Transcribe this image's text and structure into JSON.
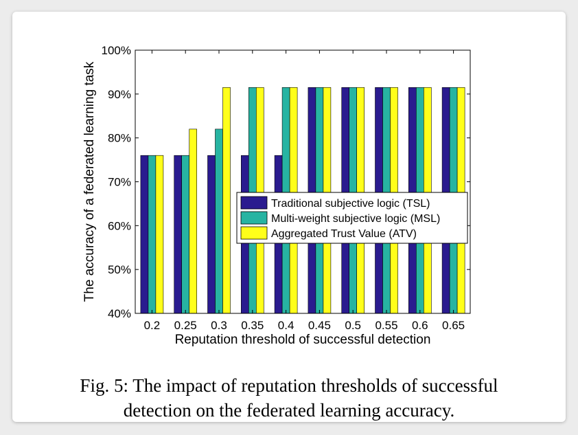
{
  "chart_data": {
    "type": "bar",
    "ylabel": "The accuracy of a federated learning task",
    "xlabel": "Reputation threshold of successful detection",
    "categories": [
      "0.2",
      "0.25",
      "0.3",
      "0.35",
      "0.4",
      "0.45",
      "0.5",
      "0.55",
      "0.6",
      "0.65"
    ],
    "ylim": [
      40,
      100
    ],
    "yticks": [
      "40%",
      "50%",
      "60%",
      "70%",
      "80%",
      "90%",
      "100%"
    ],
    "grid": false,
    "legend_position": "center-right",
    "series": [
      {
        "name": "Traditional subjective logic (TSL)",
        "color": "#2a1b8f",
        "values": [
          76,
          76,
          76,
          76,
          76,
          91.5,
          91.5,
          91.5,
          91.5,
          91.5
        ]
      },
      {
        "name": "Multi-weight subjective logic (MSL)",
        "color": "#27b4a2",
        "values": [
          76,
          76,
          82,
          91.5,
          91.5,
          91.5,
          91.5,
          91.5,
          91.5,
          91.5
        ]
      },
      {
        "name": "Aggregated Trust Value (ATV)",
        "color": "#ffff1a",
        "values": [
          76,
          82,
          91.5,
          91.5,
          91.5,
          91.5,
          91.5,
          91.5,
          91.5,
          91.5
        ]
      }
    ]
  },
  "caption": {
    "line1": "Fig. 5: The impact of reputation thresholds of successful",
    "line2": "detection on the federated learning accuracy."
  }
}
